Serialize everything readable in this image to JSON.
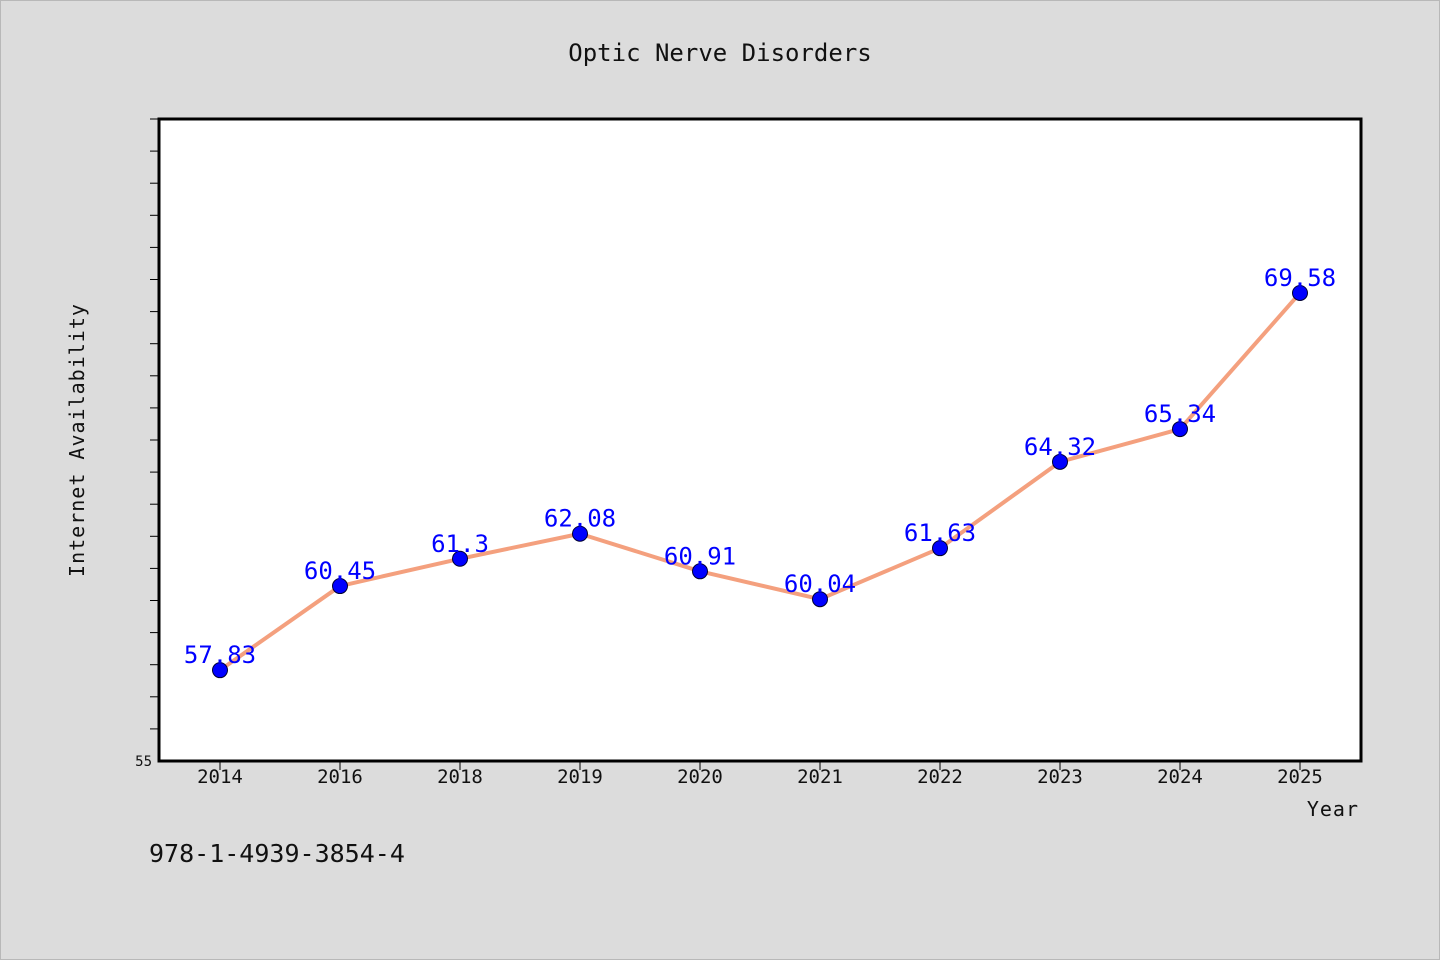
{
  "chart_data": {
    "type": "line",
    "title": "Optic Nerve Disorders",
    "xlabel": "Year",
    "ylabel": "Internet Availability",
    "categories": [
      "2014",
      "2016",
      "2018",
      "2019",
      "2020",
      "2021",
      "2022",
      "2023",
      "2024",
      "2025"
    ],
    "series": [
      {
        "values": [
          57.83,
          60.45,
          61.3,
          62.08,
          60.91,
          60.04,
          61.63,
          64.32,
          65.34,
          69.58
        ],
        "data_labels": [
          "57.83",
          "60.45",
          "61.3",
          "62.08",
          "60.91",
          "60.04",
          "61.63",
          "64.32",
          "65.34",
          "69.58"
        ]
      }
    ],
    "ylim": [
      55,
      75
    ],
    "y_tick_labels": [
      "55"
    ],
    "grid": false,
    "legend": "none",
    "colors": {
      "line": "#f4a07e",
      "marker": "#0000ff",
      "data_label": "#0000ff",
      "plot_bg": "#ffffff",
      "page_bg": "#dcdcdc"
    }
  },
  "footer": {
    "code": "978-1-4939-3854-4"
  }
}
